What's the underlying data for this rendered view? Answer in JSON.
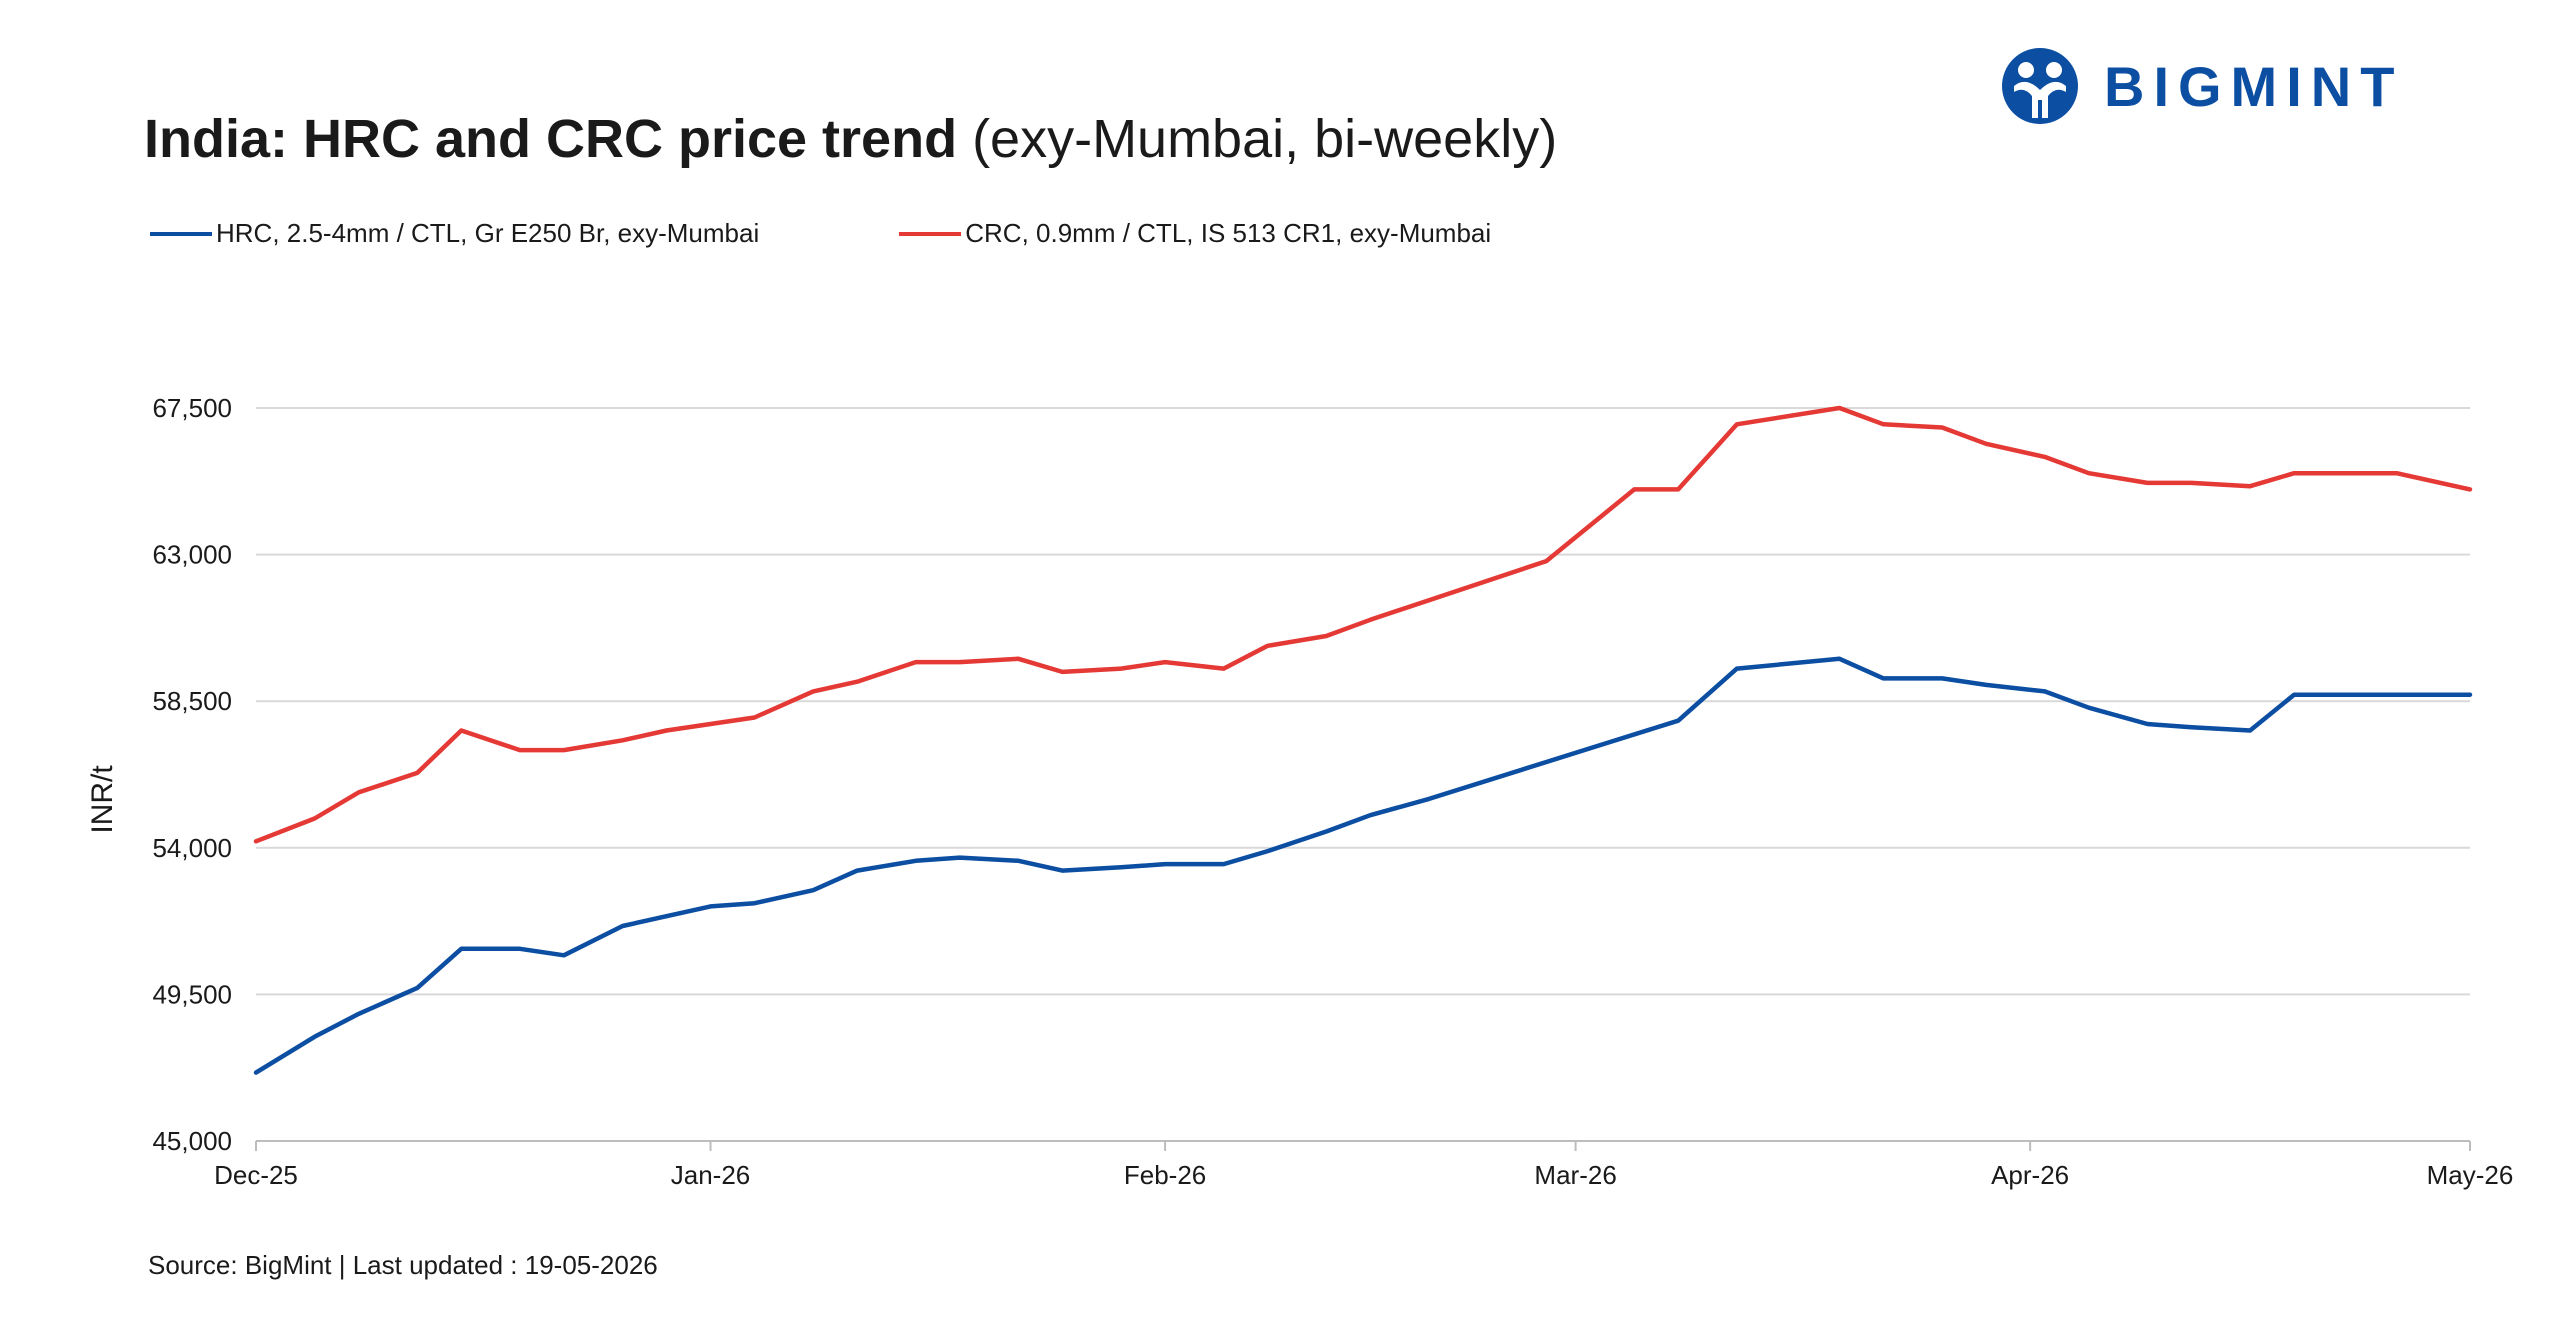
{
  "header": {
    "title_bold": "India: HRC and CRC price trend",
    "title_rest": " (exy-Mumbai, bi-weekly)",
    "logo_text": "BIGMINT"
  },
  "footer": {
    "source": "Source: BigMint | Last updated : 19-05-2026"
  },
  "colors": {
    "hrc": "#0b4ea2",
    "crc": "#e53935",
    "brand": "#0b4ea2",
    "grid": "#d9d9d9"
  },
  "chart_data": {
    "type": "line",
    "ylabel": "INR/t",
    "ylim": [
      45000,
      67500
    ],
    "yticks": [
      "45,000",
      "49,500",
      "54,000",
      "58,500",
      "63,000",
      "67,500"
    ],
    "ytick_values": [
      45000,
      49500,
      54000,
      58500,
      63000,
      67500
    ],
    "xlim": [
      "2025-12-01",
      "2026-05-01"
    ],
    "xticks": [
      {
        "label": "Dec-25",
        "date": "2025-12-01"
      },
      {
        "label": "Jan-26",
        "date": "2026-01-01"
      },
      {
        "label": "Feb-26",
        "date": "2026-02-01"
      },
      {
        "label": "Mar-26",
        "date": "2026-03-01"
      },
      {
        "label": "Apr-26",
        "date": "2026-04-01"
      },
      {
        "label": "May-26",
        "date": "2026-05-01"
      }
    ],
    "grid": true,
    "legend_position": "top-left",
    "series": [
      {
        "name": "HRC, 2.5-4mm / CTL, Gr E250 Br, exy-Mumbai",
        "color": "#0b4ea2",
        "points": [
          [
            "2025-12-01",
            47100
          ],
          [
            "2025-12-05",
            48200
          ],
          [
            "2025-12-08",
            48900
          ],
          [
            "2025-12-12",
            49700
          ],
          [
            "2025-12-15",
            50900
          ],
          [
            "2025-12-19",
            50900
          ],
          [
            "2025-12-22",
            50700
          ],
          [
            "2025-12-26",
            51600
          ],
          [
            "2025-12-29",
            51900
          ],
          [
            "2026-01-01",
            52200
          ],
          [
            "2026-01-04",
            52300
          ],
          [
            "2026-01-08",
            52700
          ],
          [
            "2026-01-11",
            53300
          ],
          [
            "2026-01-15",
            53600
          ],
          [
            "2026-01-18",
            53700
          ],
          [
            "2026-01-22",
            53600
          ],
          [
            "2026-01-25",
            53300
          ],
          [
            "2026-01-29",
            53400
          ],
          [
            "2026-02-01",
            53500
          ],
          [
            "2026-02-05",
            53500
          ],
          [
            "2026-02-08",
            53900
          ],
          [
            "2026-02-12",
            54500
          ],
          [
            "2026-02-15",
            55000
          ],
          [
            "2026-02-19",
            55500
          ],
          [
            "2026-03-03",
            57200
          ],
          [
            "2026-03-08",
            57900
          ],
          [
            "2026-03-12",
            59500
          ],
          [
            "2026-03-19",
            59800
          ],
          [
            "2026-03-22",
            59200
          ],
          [
            "2026-03-26",
            59200
          ],
          [
            "2026-03-29",
            59000
          ],
          [
            "2026-04-02",
            58800
          ],
          [
            "2026-04-05",
            58300
          ],
          [
            "2026-04-09",
            57800
          ],
          [
            "2026-04-12",
            57700
          ],
          [
            "2026-04-16",
            57600
          ],
          [
            "2026-04-19",
            58700
          ],
          [
            "2026-04-23",
            58700
          ],
          [
            "2026-05-01",
            58700
          ]
        ]
      },
      {
        "name": "CRC, 0.9mm / CTL, IS 513 CR1, exy-Mumbai",
        "color": "#e53935",
        "points": [
          [
            "2025-12-01",
            54200
          ],
          [
            "2025-12-05",
            54900
          ],
          [
            "2025-12-08",
            55700
          ],
          [
            "2025-12-12",
            56300
          ],
          [
            "2025-12-15",
            57600
          ],
          [
            "2025-12-19",
            57000
          ],
          [
            "2025-12-22",
            57000
          ],
          [
            "2025-12-26",
            57300
          ],
          [
            "2025-12-29",
            57600
          ],
          [
            "2026-01-01",
            57800
          ],
          [
            "2026-01-04",
            58000
          ],
          [
            "2026-01-08",
            58800
          ],
          [
            "2026-01-11",
            59100
          ],
          [
            "2026-01-15",
            59700
          ],
          [
            "2026-01-18",
            59700
          ],
          [
            "2026-01-22",
            59800
          ],
          [
            "2026-01-25",
            59400
          ],
          [
            "2026-01-29",
            59500
          ],
          [
            "2026-02-01",
            59700
          ],
          [
            "2026-02-05",
            59500
          ],
          [
            "2026-02-08",
            60200
          ],
          [
            "2026-02-12",
            60500
          ],
          [
            "2026-02-15",
            61000
          ],
          [
            "2026-02-19",
            61600
          ],
          [
            "2026-02-27",
            62800
          ],
          [
            "2026-03-05",
            65000
          ],
          [
            "2026-03-08",
            65000
          ],
          [
            "2026-03-12",
            67000
          ],
          [
            "2026-03-19",
            67500
          ],
          [
            "2026-03-22",
            67000
          ],
          [
            "2026-03-26",
            66900
          ],
          [
            "2026-03-29",
            66400
          ],
          [
            "2026-04-02",
            66000
          ],
          [
            "2026-04-05",
            65500
          ],
          [
            "2026-04-09",
            65200
          ],
          [
            "2026-04-12",
            65200
          ],
          [
            "2026-04-16",
            65100
          ],
          [
            "2026-04-19",
            65500
          ],
          [
            "2026-04-23",
            65500
          ],
          [
            "2026-04-26",
            65500
          ],
          [
            "2026-05-01",
            65000
          ]
        ]
      }
    ]
  }
}
